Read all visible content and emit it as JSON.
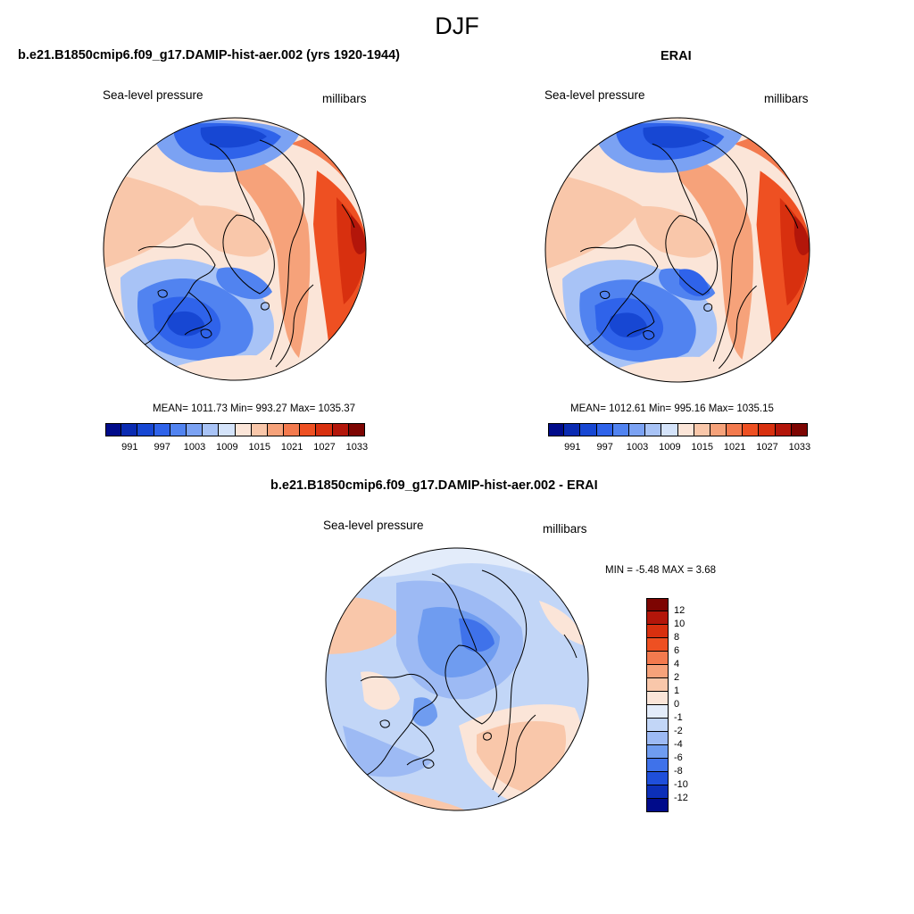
{
  "figure": {
    "title": "DJF"
  },
  "panels": [
    {
      "title": "b.e21.B1850cmip6.f09_g17.DAMIP-hist-aer.002 (yrs 1920-1944)",
      "left_label": "Sea-level pressure",
      "right_label": "millibars",
      "stats": "MEAN= 1011.73  Min= 993.27  Max= 1035.37"
    },
    {
      "title": "ERAI",
      "left_label": "Sea-level pressure",
      "right_label": "millibars",
      "stats": "MEAN= 1012.61  Min= 995.16  Max= 1035.15"
    },
    {
      "title": "b.e21.B1850cmip6.f09_g17.DAMIP-hist-aer.002 - ERAI",
      "left_label": "Sea-level pressure",
      "right_label": "millibars",
      "stats": "MIN =  -5.48 MAX =   3.68"
    }
  ],
  "colorbars": {
    "slp": {
      "colors": [
        "#000b8a",
        "#0a2bb2",
        "#1747d3",
        "#2f63ea",
        "#5183f0",
        "#7ba2f3",
        "#a8c3f6",
        "#d4e3fa",
        "#fbe5d8",
        "#f9c7aa",
        "#f6a27a",
        "#f37a4e",
        "#ee5022",
        "#d8300f",
        "#b3160a",
        "#7d0502"
      ],
      "ticks": [
        "991",
        "997",
        "1003",
        "1009",
        "1015",
        "1021",
        "1027",
        "1033"
      ]
    },
    "diff": {
      "colors": [
        "#7d0502",
        "#b3160a",
        "#d8300f",
        "#ee5022",
        "#f37a4e",
        "#f6a27a",
        "#f9c7aa",
        "#fbe5d8",
        "#e3ecfa",
        "#c2d6f7",
        "#9dbaf4",
        "#6f9cf0",
        "#3f72ea",
        "#1f4fdb",
        "#0c2fb8",
        "#000b8a"
      ],
      "ticks": [
        "12",
        "10",
        "8",
        "6",
        "4",
        "2",
        "1",
        "0",
        "-1",
        "-2",
        "-4",
        "-6",
        "-8",
        "-10",
        "-12"
      ]
    }
  }
}
